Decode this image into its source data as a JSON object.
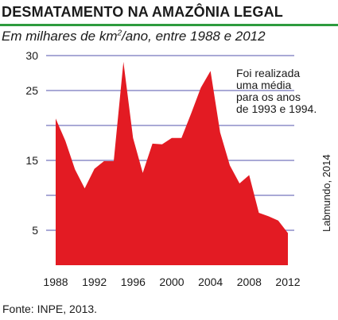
{
  "header": {
    "title": "DESMATAMENTO NA AMAZÔNIA LEGAL",
    "subtitle_before": "Em milhares de km",
    "subtitle_sup": "2",
    "subtitle_after": "/ano, entre 1988 e 2012"
  },
  "annotation": {
    "lines": [
      "Foi realizada",
      "uma média",
      "para os anos",
      "de 1993 e 1994."
    ]
  },
  "footer": {
    "source": "Fonte: INPE, 2013.",
    "credit": "Labmundo, 2014"
  },
  "colors": {
    "area_fill": "#e31b23",
    "gridline": "#a9a9d6",
    "title_rule": "#2e9b3e"
  },
  "chart_data": {
    "type": "area",
    "x": [
      1988,
      1989,
      1990,
      1991,
      1992,
      1993,
      1994,
      1995,
      1996,
      1997,
      1998,
      1999,
      2000,
      2001,
      2002,
      2003,
      2004,
      2005,
      2006,
      2007,
      2008,
      2009,
      2010,
      2011,
      2012
    ],
    "series": [
      {
        "values": [
          21.0,
          17.8,
          13.7,
          11.0,
          13.8,
          14.9,
          14.9,
          29.1,
          18.2,
          13.2,
          17.4,
          17.3,
          18.2,
          18.2,
          21.7,
          25.4,
          27.8,
          19.0,
          14.3,
          11.7,
          12.9,
          7.5,
          7.0,
          6.4,
          4.6
        ]
      }
    ],
    "yticks": [
      5,
      15,
      25,
      30
    ],
    "ytick_labels": [
      "5",
      "15",
      "25",
      "30"
    ],
    "xticks": [
      1988,
      1992,
      1996,
      2000,
      2004,
      2008,
      2012
    ],
    "xtick_labels": [
      "1988",
      "1992",
      "1996",
      "2000",
      "2004",
      "2008",
      "2012"
    ],
    "gridlines_at": [
      10,
      20
    ],
    "ylim": [
      0,
      30
    ],
    "xlim": [
      1988,
      2012
    ],
    "grid": true,
    "legend": "none"
  }
}
